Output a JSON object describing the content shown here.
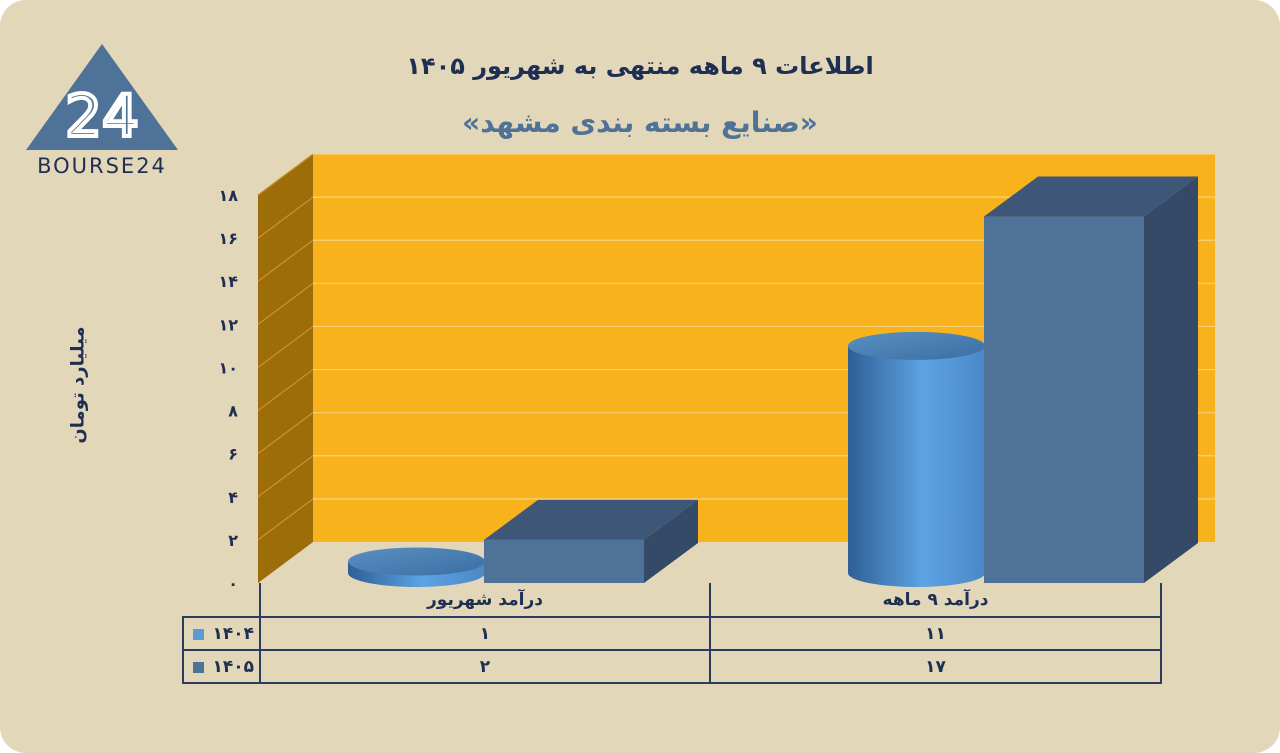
{
  "chart_data": {
    "type": "bar",
    "title": "اطلاعات ۹ ماهه منتهی به شهریور ۱۴۰۵",
    "subtitle": "«صنایع بسته بندی مشهد»",
    "ylabel": "میلیارد تومان",
    "ylim": [
      0,
      18
    ],
    "yticks": [
      "۰",
      "۲",
      "۴",
      "۶",
      "۸",
      "۱۰",
      "۱۲",
      "۱۴",
      "۱۶",
      "۱۸"
    ],
    "ytick_values": [
      0,
      2,
      4,
      6,
      8,
      10,
      12,
      14,
      16,
      18
    ],
    "categories": [
      "درآمد شهریور",
      "درآمد ۹ ماهه"
    ],
    "series": [
      {
        "name": "۱۴۰۴",
        "values": [
          1,
          11
        ],
        "value_labels": [
          "۱",
          "۱۱"
        ],
        "shape": "cylinder",
        "color": "#5b9bd5"
      },
      {
        "name": "۱۴۰۵",
        "values": [
          2,
          17
        ],
        "value_labels": [
          "۲",
          "۱۷"
        ],
        "shape": "box",
        "color": "#4f7299"
      }
    ],
    "grid": true,
    "legend": "data-table-left",
    "wall_color": "#f8b21c",
    "side_wall_color": "#9c6d09"
  },
  "logo": {
    "text": "BOURSE24",
    "mark": "24",
    "color": "#4f7299"
  }
}
